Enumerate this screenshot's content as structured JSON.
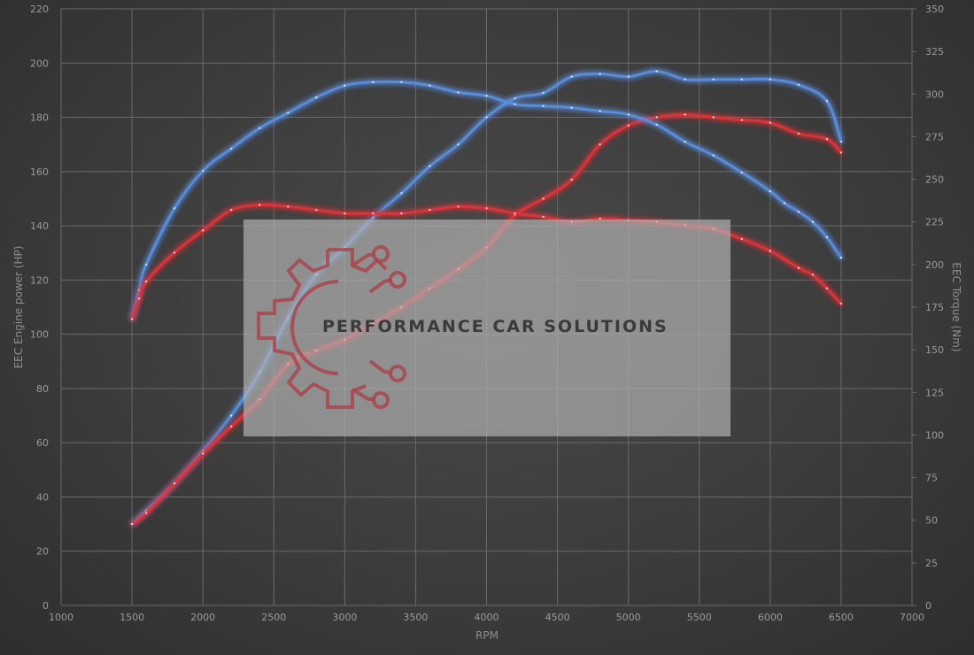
{
  "chart_data": {
    "type": "line",
    "xlabel": "RPM",
    "ylabel_left": "EEC Engine power (HP)",
    "ylabel_right": "EEC Torque (Nm)",
    "xlim": [
      1000,
      7000
    ],
    "ylim_left": [
      0,
      220
    ],
    "ylim_right": [
      0,
      350
    ],
    "x_ticks": [
      1000,
      1500,
      2000,
      2500,
      3000,
      3500,
      4000,
      4500,
      5000,
      5500,
      6000,
      6500,
      7000
    ],
    "y_left_ticks": [
      0,
      20,
      40,
      60,
      80,
      100,
      120,
      140,
      160,
      180,
      200,
      220
    ],
    "y_right_ticks": [
      0,
      25,
      50,
      75,
      100,
      125,
      150,
      175,
      200,
      225,
      250,
      275,
      300,
      325,
      350
    ],
    "grid": true,
    "colors": {
      "tuned": "#5b8fe0",
      "stock": "#e0343a"
    },
    "series": [
      {
        "axis": "left",
        "color": "#5b8fe0",
        "x": [
          1500,
          1600,
          1800,
          2000,
          2200,
          2400,
          2600,
          2800,
          3000,
          3200,
          3400,
          3600,
          3800,
          4000,
          4200,
          4400,
          4600,
          4800,
          5000,
          5200,
          5400,
          5600,
          5800,
          6000,
          6200,
          6400,
          6500
        ],
        "y": [
          30,
          35,
          45,
          57,
          70,
          86,
          106,
          122,
          132,
          143,
          152,
          162,
          170,
          180,
          187,
          189,
          195,
          196,
          195,
          197,
          194,
          194,
          194,
          194,
          192,
          186,
          171
        ]
      },
      {
        "axis": "left",
        "color": "#e0343a",
        "x": [
          1500,
          1600,
          1800,
          2000,
          2200,
          2400,
          2600,
          2800,
          3000,
          3200,
          3400,
          3600,
          3800,
          4000,
          4200,
          4400,
          4600,
          4800,
          5000,
          5200,
          5400,
          5600,
          5800,
          6000,
          6200,
          6400,
          6500
        ],
        "y": [
          30,
          34,
          45,
          56,
          66,
          76,
          89,
          94,
          98,
          104,
          110,
          117,
          124,
          132,
          144,
          150,
          157,
          170,
          177,
          180,
          181,
          180,
          179,
          178,
          174,
          172,
          167
        ]
      },
      {
        "axis": "right",
        "color": "#5b8fe0",
        "x": [
          1500,
          1550,
          1600,
          1800,
          2000,
          2200,
          2400,
          2600,
          2800,
          3000,
          3200,
          3400,
          3600,
          3800,
          4000,
          4200,
          4400,
          4600,
          4800,
          5000,
          5200,
          5400,
          5600,
          5800,
          6000,
          6100,
          6200,
          6300,
          6400,
          6500
        ],
        "y": [
          168,
          185,
          200,
          233,
          255,
          268,
          280,
          289,
          298,
          305,
          307,
          307,
          305,
          301,
          299,
          294,
          293,
          292,
          290,
          288,
          282,
          272,
          264,
          254,
          243,
          236,
          231,
          225,
          216,
          204
        ]
      },
      {
        "axis": "right",
        "color": "#e0343a",
        "x": [
          1500,
          1550,
          1600,
          1800,
          2000,
          2200,
          2400,
          2600,
          2800,
          3000,
          3200,
          3400,
          3600,
          3800,
          4000,
          4200,
          4400,
          4600,
          4800,
          5000,
          5200,
          5400,
          5600,
          5800,
          6000,
          6200,
          6300,
          6400,
          6500
        ],
        "y": [
          168,
          180,
          190,
          207,
          220,
          232,
          235,
          234,
          232,
          230,
          230,
          230,
          232,
          234,
          233,
          230,
          228,
          225,
          227,
          226,
          225,
          223,
          221,
          215,
          208,
          198,
          194,
          186,
          177
        ]
      }
    ]
  },
  "watermark": {
    "text": "PERFORMANCE CAR SOLUTIONS"
  }
}
